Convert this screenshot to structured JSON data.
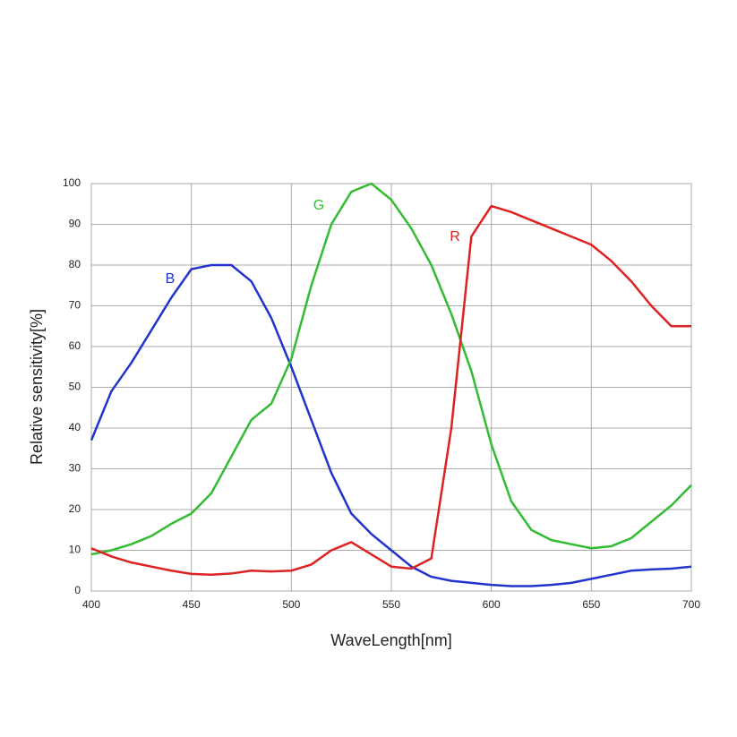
{
  "chart_data": {
    "type": "line",
    "xlabel": "WaveLength[nm]",
    "ylabel": "Relative sensitivity[%]",
    "x": [
      400,
      410,
      420,
      430,
      440,
      450,
      460,
      470,
      480,
      490,
      500,
      510,
      520,
      530,
      540,
      550,
      560,
      570,
      580,
      590,
      600,
      610,
      620,
      630,
      640,
      650,
      660,
      670,
      680,
      690,
      700
    ],
    "series": [
      {
        "name": "B",
        "color": "#2233cc",
        "values": [
          37,
          49,
          56,
          64,
          72,
          79,
          80,
          80,
          76,
          67,
          55,
          42,
          29,
          19,
          14,
          10,
          6,
          3.5,
          2.5,
          2,
          1.5,
          1.2,
          1.2,
          1.5,
          2,
          3,
          4,
          5,
          5.3,
          5.5,
          6
        ]
      },
      {
        "name": "G",
        "color": "#33bb33",
        "values": [
          9,
          10,
          11.5,
          13.5,
          16.5,
          19,
          24,
          33,
          42,
          46,
          57,
          75,
          90,
          98,
          100,
          96,
          89,
          80,
          68,
          54,
          36,
          22,
          15,
          12.5,
          11.5,
          10.5,
          11,
          13,
          17,
          21,
          26
        ]
      },
      {
        "name": "R",
        "color": "#dd2222",
        "values": [
          10.5,
          8.5,
          7,
          6,
          5,
          4.2,
          4,
          4.3,
          5,
          4.8,
          5,
          6.5,
          10,
          12,
          9,
          6,
          5.5,
          8,
          40,
          87,
          94.5,
          93,
          91,
          89,
          87,
          85,
          81,
          76,
          70,
          65,
          65
        ]
      }
    ],
    "xlim": [
      400,
      700
    ],
    "xticks": [
      400,
      450,
      500,
      550,
      600,
      650,
      700
    ],
    "ylim": [
      0,
      100
    ],
    "yticks": [
      0,
      10,
      20,
      30,
      40,
      50,
      60,
      70,
      80,
      90,
      100
    ],
    "grid": true
  }
}
